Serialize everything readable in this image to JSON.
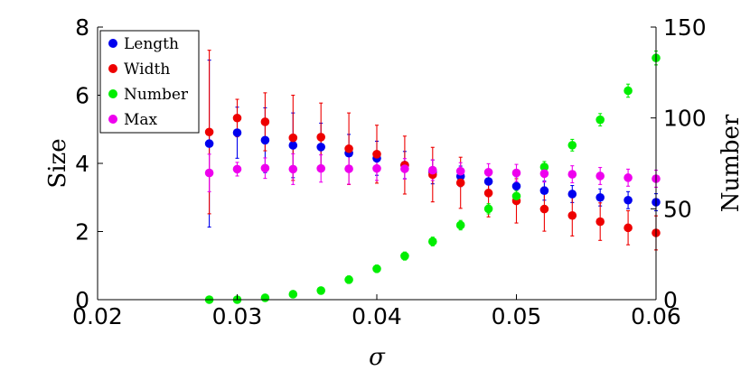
{
  "chart_data": {
    "type": "scatter",
    "x_label": "σ",
    "y_left_label": "Size",
    "y_right_label": "Number",
    "x_range": [
      0.02,
      0.06
    ],
    "y_left_range": [
      0,
      8
    ],
    "y_right_range": [
      0,
      150
    ],
    "x_ticks": [
      "0.02",
      "0.03",
      "0.04",
      "0.05",
      "0.06"
    ],
    "y_left_ticks": [
      "0",
      "2",
      "4",
      "6",
      "8"
    ],
    "y_right_ticks": [
      "0",
      "50",
      "100",
      "150"
    ],
    "x_tick_values": [
      0.02,
      0.03,
      0.04,
      0.05,
      0.06
    ],
    "y_left_tick_values": [
      0,
      2,
      4,
      6,
      8
    ],
    "y_right_tick_values": [
      0,
      50,
      100,
      150
    ],
    "grid": false,
    "legend_position": "top-left",
    "x": [
      0.028,
      0.03,
      0.032,
      0.034,
      0.036,
      0.038,
      0.04,
      0.042,
      0.044,
      0.046,
      0.048,
      0.05,
      0.052,
      0.054,
      0.056,
      0.058,
      0.06
    ],
    "series": [
      {
        "name": "Length",
        "axis": "left",
        "color": "#0000ee",
        "values": [
          4.58,
          4.9,
          4.68,
          4.53,
          4.48,
          4.3,
          4.15,
          3.95,
          3.75,
          3.62,
          3.47,
          3.33,
          3.2,
          3.1,
          3.0,
          2.92,
          2.86
        ],
        "errors": [
          2.45,
          0.75,
          0.95,
          0.95,
          0.7,
          0.55,
          0.5,
          0.4,
          0.35,
          0.3,
          0.3,
          0.28,
          0.28,
          0.25,
          0.25,
          0.25,
          0.25
        ]
      },
      {
        "name": "Width",
        "axis": "left",
        "color": "#ee0000",
        "values": [
          4.92,
          5.33,
          5.22,
          4.75,
          4.77,
          4.43,
          4.27,
          3.95,
          3.67,
          3.43,
          3.13,
          2.9,
          2.66,
          2.47,
          2.29,
          2.11,
          1.96
        ],
        "errors": [
          2.4,
          0.55,
          0.85,
          1.25,
          1.0,
          1.05,
          0.85,
          0.85,
          0.8,
          0.75,
          0.7,
          0.65,
          0.65,
          0.6,
          0.55,
          0.5,
          0.5
        ]
      },
      {
        "name": "Number",
        "axis": "right",
        "color": "#00ee00",
        "values": [
          0,
          0,
          1,
          3,
          5,
          11,
          17,
          24,
          32,
          41,
          50,
          57,
          73,
          85,
          99,
          115,
          133
        ],
        "errors": [
          0.3,
          0.5,
          0.8,
          1.2,
          1.5,
          2.0,
          2.0,
          2.2,
          2.4,
          2.6,
          2.8,
          3.0,
          3.0,
          3.2,
          3.4,
          3.6,
          3.8
        ]
      },
      {
        "name": "Max",
        "axis": "left",
        "color": "#ee00ee",
        "values": [
          3.72,
          3.83,
          3.86,
          3.83,
          3.85,
          3.84,
          3.85,
          3.84,
          3.8,
          3.77,
          3.74,
          3.72,
          3.7,
          3.68,
          3.63,
          3.58,
          3.55
        ],
        "errors": [
          0.55,
          0.2,
          0.3,
          0.45,
          0.4,
          0.45,
          0.35,
          0.3,
          0.3,
          0.25,
          0.25,
          0.25,
          0.25,
          0.25,
          0.25,
          0.25,
          0.25
        ]
      }
    ]
  }
}
